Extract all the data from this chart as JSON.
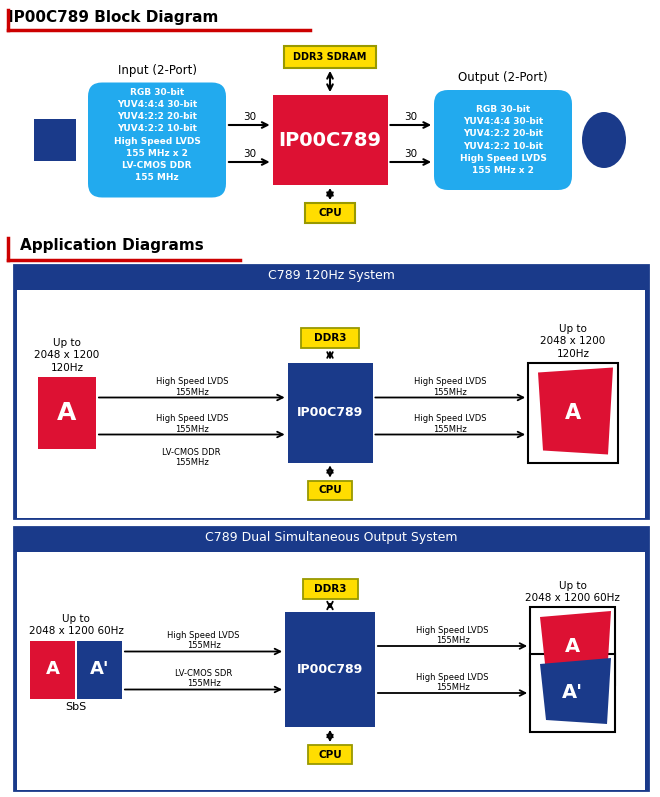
{
  "title": "IP00C789 Block Diagram",
  "app_title": "Application Diagrams",
  "bg_color": "#ffffff",
  "title_color": "#000000",
  "red_line_color": "#cc0000",
  "yellow_color": "#ffdd00",
  "yellow_border": "#999900",
  "cyan_box_color": "#22aaee",
  "red_box_color": "#dd1133",
  "dark_blue": "#1a3a8a",
  "white": "#ffffff",
  "black": "#000000",
  "diag1_title": "C789 120Hz System",
  "diag2_title": "C789 Dual Simultaneous Output System",
  "input_box_text": "RGB 30-bit\nYUV4:4:4 30-bit\nYUV4:2:2 20-bit\nYUV4:2:2 10-bit\nHigh Speed LVDS\n155 MHz x 2\nLV-CMOS DDR\n155 MHz",
  "output_box_text": "RGB 30-bit\nYUV4:4:4 30-bit\nYUV4:2:2 20-bit\nYUV4:2:2 10-bit\nHigh Speed LVDS\n155 MHz x 2",
  "main_chip_text": "IP00C789",
  "ddr3_sdram_text": "DDR3 SDRAM",
  "cpu_text": "CPU",
  "input_label": "Input (2-Port)",
  "output_label": "Output (2-Port)"
}
